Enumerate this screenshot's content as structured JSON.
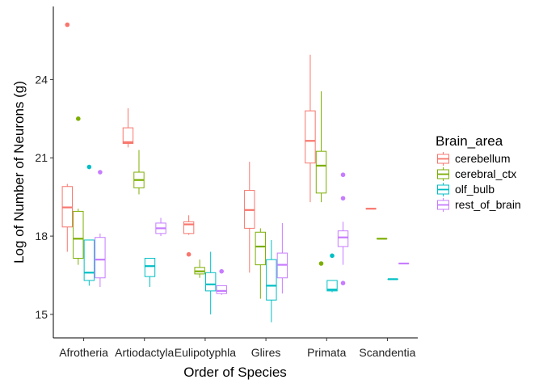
{
  "chart_data": {
    "type": "boxplot",
    "xlabel": "Order of Species",
    "ylabel": "Log of Number of Neurons (g)",
    "categories": [
      "Afrotheria",
      "Artiodactyla",
      "Eulipotyphla",
      "Glires",
      "Primata",
      "Scandentia"
    ],
    "yticks": [
      15,
      18,
      21,
      24
    ],
    "ylim": [
      14.1,
      26.8
    ],
    "grid": false,
    "legend": {
      "title": "Brain_area",
      "position": "right",
      "entries": [
        {
          "name": "cerebellum",
          "color": "#F8766D"
        },
        {
          "name": "cerebral_ctx",
          "color": "#7CAE00"
        },
        {
          "name": "olf_bulb",
          "color": "#00BFC4"
        },
        {
          "name": "rest_of_brain",
          "color": "#C77CFF"
        }
      ]
    },
    "series": [
      {
        "name": "cerebellum",
        "color": "#F8766D",
        "boxes": [
          {
            "category": "Afrotheria",
            "wlow": 17.4,
            "q1": 18.35,
            "median": 19.1,
            "q3": 19.9,
            "whigh": 20.0,
            "outliers": [
              26.1
            ]
          },
          {
            "category": "Artiodactyla",
            "wlow": 21.4,
            "q1": 21.55,
            "median": 21.6,
            "q3": 22.15,
            "whigh": 22.9,
            "outliers": []
          },
          {
            "category": "Eulipotyphla",
            "wlow": 18.05,
            "q1": 18.1,
            "median": 18.45,
            "q3": 18.55,
            "whigh": 18.8,
            "outliers": [
              17.3
            ]
          },
          {
            "category": "Glires",
            "wlow": 16.6,
            "q1": 18.3,
            "median": 19.0,
            "q3": 19.75,
            "whigh": 20.85,
            "outliers": []
          },
          {
            "category": "Primata",
            "wlow": 19.3,
            "q1": 20.8,
            "median": 21.65,
            "q3": 22.8,
            "whigh": 24.95,
            "outliers": []
          },
          {
            "category": "Scandentia",
            "wlow": 19.05,
            "q1": 19.05,
            "median": 19.05,
            "q3": 19.05,
            "whigh": 19.05,
            "outliers": []
          }
        ]
      },
      {
        "name": "cerebral_ctx",
        "color": "#7CAE00",
        "boxes": [
          {
            "category": "Afrotheria",
            "wlow": 16.9,
            "q1": 17.15,
            "median": 17.9,
            "q3": 18.95,
            "whigh": 19.05,
            "outliers": [
              22.5
            ]
          },
          {
            "category": "Artiodactyla",
            "wlow": 19.6,
            "q1": 19.85,
            "median": 20.15,
            "q3": 20.45,
            "whigh": 21.3,
            "outliers": []
          },
          {
            "category": "Eulipotyphla",
            "wlow": 16.4,
            "q1": 16.55,
            "median": 16.65,
            "q3": 16.8,
            "whigh": 17.1,
            "outliers": []
          },
          {
            "category": "Glires",
            "wlow": 15.6,
            "q1": 16.9,
            "median": 17.6,
            "q3": 18.15,
            "whigh": 18.3,
            "outliers": []
          },
          {
            "category": "Primata",
            "wlow": 19.3,
            "q1": 19.65,
            "median": 20.7,
            "q3": 21.25,
            "whigh": 23.55,
            "outliers": [
              16.95
            ]
          },
          {
            "category": "Scandentia",
            "wlow": 17.9,
            "q1": 17.9,
            "median": 17.9,
            "q3": 17.9,
            "whigh": 17.9,
            "outliers": []
          }
        ]
      },
      {
        "name": "olf_bulb",
        "color": "#00BFC4",
        "boxes": [
          {
            "category": "Afrotheria",
            "wlow": 16.1,
            "q1": 16.3,
            "median": 16.6,
            "q3": 17.85,
            "whigh": 17.85,
            "outliers": [
              20.65
            ]
          },
          {
            "category": "Artiodactyla",
            "wlow": 16.05,
            "q1": 16.45,
            "median": 16.85,
            "q3": 17.15,
            "whigh": 17.15,
            "outliers": []
          },
          {
            "category": "Eulipotyphla",
            "wlow": 15.0,
            "q1": 15.9,
            "median": 16.15,
            "q3": 16.6,
            "whigh": 17.4,
            "outliers": []
          },
          {
            "category": "Glires",
            "wlow": 14.7,
            "q1": 15.55,
            "median": 16.1,
            "q3": 17.1,
            "whigh": 17.85,
            "outliers": []
          },
          {
            "category": "Primata",
            "wlow": 15.85,
            "q1": 15.9,
            "median": 15.95,
            "q3": 16.3,
            "whigh": 16.3,
            "outliers": [
              17.25
            ]
          },
          {
            "category": "Scandentia",
            "wlow": 16.35,
            "q1": 16.35,
            "median": 16.35,
            "q3": 16.35,
            "whigh": 16.35,
            "outliers": []
          }
        ]
      },
      {
        "name": "rest_of_brain",
        "color": "#C77CFF",
        "boxes": [
          {
            "category": "Afrotheria",
            "wlow": 16.05,
            "q1": 16.4,
            "median": 17.1,
            "q3": 17.95,
            "whigh": 18.1,
            "outliers": [
              20.45
            ]
          },
          {
            "category": "Artiodactyla",
            "wlow": 18.0,
            "q1": 18.1,
            "median": 18.3,
            "q3": 18.5,
            "whigh": 18.7,
            "outliers": []
          },
          {
            "category": "Eulipotyphla",
            "wlow": 15.75,
            "q1": 15.8,
            "median": 15.9,
            "q3": 16.1,
            "whigh": 16.1,
            "outliers": [
              16.65
            ]
          },
          {
            "category": "Glires",
            "wlow": 15.8,
            "q1": 16.4,
            "median": 16.9,
            "q3": 17.35,
            "whigh": 18.5,
            "outliers": []
          },
          {
            "category": "Primata",
            "wlow": 16.9,
            "q1": 17.6,
            "median": 17.95,
            "q3": 18.2,
            "whigh": 18.55,
            "outliers": [
              16.2,
              19.45,
              20.35
            ]
          },
          {
            "category": "Scandentia",
            "wlow": 16.95,
            "q1": 16.95,
            "median": 16.95,
            "q3": 16.95,
            "whigh": 16.95,
            "outliers": []
          }
        ]
      }
    ]
  }
}
